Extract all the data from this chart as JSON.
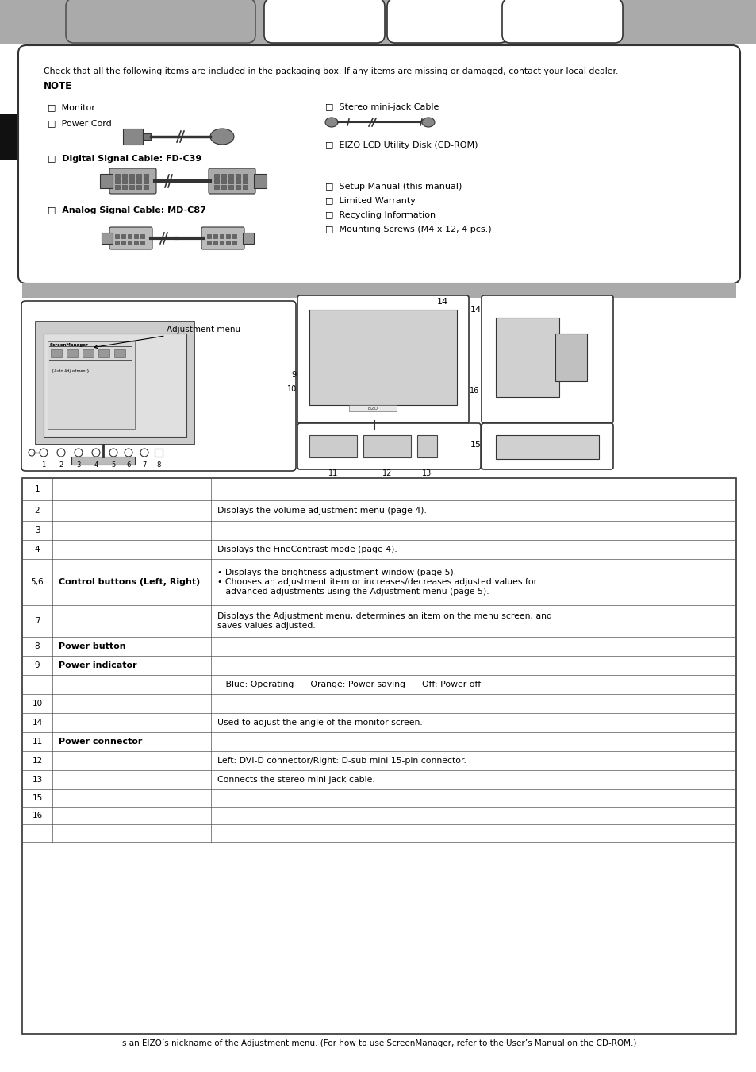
{
  "bg_color": "#ffffff",
  "tab_gray": "#999999",
  "note_text": "Check that all the following items are included in the packaging box. If any items are missing or damaged, contact your local dealer.",
  "note_bold": "NOTE",
  "items_left": [
    "□  Monitor",
    "□  Power Cord",
    "□  Digital Signal Cable: FD-C39",
    "□  Analog Signal Cable: MD-C87"
  ],
  "items_right": [
    "□  Stereo mini-jack Cable",
    "□  EIZO LCD Utility Disk (CD-ROM)",
    "□  Setup Manual (this manual)",
    "□  Limited Warranty",
    "□  Recycling Information",
    "□  Mounting Screws (M4 x 12, 4 pcs.)"
  ],
  "footnote": "is an EIZO’s nickname of the Adjustment menu. (For how to use ScreenManager, refer to the User’s Manual on the CD-ROM.)"
}
